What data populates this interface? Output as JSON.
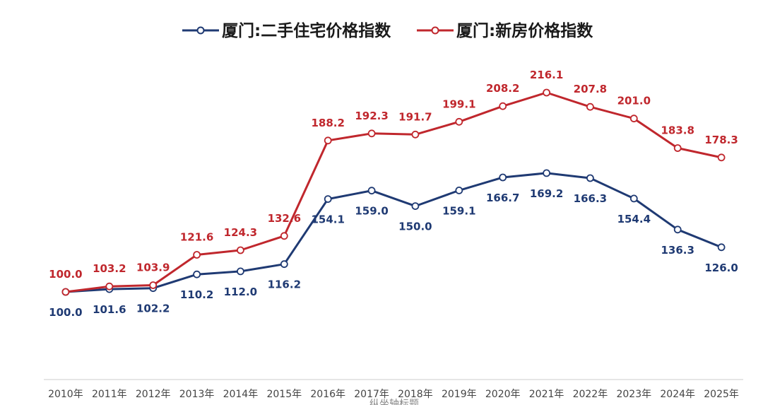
{
  "chart_data": {
    "type": "line",
    "title": "",
    "xlabel": "纵坐轴标题",
    "ylabel": "",
    "categories": [
      "2010年",
      "2011年",
      "2012年",
      "2013年",
      "2014年",
      "2015年",
      "2016年",
      "2017年",
      "2018年",
      "2019年",
      "2020年",
      "2021年",
      "2022年",
      "2023年",
      "2024年",
      "2025年"
    ],
    "series": [
      {
        "name": "厦门:二手住宅价格指数",
        "color": "#1f3a73",
        "values": [
          100.0,
          101.6,
          102.2,
          110.2,
          112.0,
          116.2,
          154.1,
          159.0,
          150.0,
          159.1,
          166.7,
          169.2,
          166.3,
          154.4,
          136.3,
          126.0
        ],
        "labels": [
          "100.0",
          "101.6",
          "102.2",
          "110.2",
          "112.0",
          "116.2",
          "154.1",
          "159.0",
          "150.0",
          "159.1",
          "166.7",
          "169.2",
          "166.3",
          "154.4",
          "136.3",
          "126.0"
        ]
      },
      {
        "name": "厦门:新房价格指数",
        "color": "#c0272d",
        "values": [
          100.0,
          103.2,
          103.9,
          121.6,
          124.3,
          132.6,
          188.2,
          192.3,
          191.7,
          199.1,
          208.2,
          216.1,
          207.8,
          201.0,
          183.8,
          178.3
        ],
        "labels": [
          "100.0",
          "103.2",
          "103.9",
          "121.6",
          "124.3",
          "132.6",
          "188.2",
          "192.3",
          "191.7",
          "199.1",
          "208.2",
          "216.1",
          "207.8",
          "201.0",
          "183.8",
          "178.3"
        ]
      }
    ],
    "ylim": [
      40,
      230
    ],
    "grid": false,
    "legend_position": "top"
  }
}
